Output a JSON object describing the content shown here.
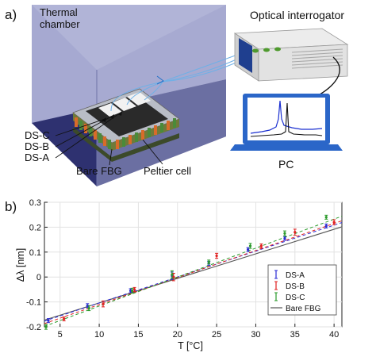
{
  "panel_a": {
    "letter": "a)",
    "thermal_chamber": [
      "Thermal",
      "chamber"
    ],
    "optical_interrogator": "Optical interrogator",
    "pc": "PC",
    "sensor_labels": [
      "DS-C",
      "DS-B",
      "DS-A"
    ],
    "bare_fbg": "Bare FBG",
    "peltier_cell": "Peltier cell",
    "colors": {
      "chamber_wall": "#8a8fc0",
      "chamber_back": "#a8acd3",
      "chamber_floor": "#2e3170",
      "interrogator_body": "#dedede",
      "interrogator_panel": "#1f3f8f",
      "interrogator_leds": "#4f9a2e",
      "spectrum_blue": "#1a2fd0",
      "spectrum_black": "#111111"
    }
  },
  "panel_b": {
    "letter": "b)",
    "chart_data": {
      "type": "scatter",
      "xlabel": "T [°C]",
      "ylabel": "Δλ [nm]",
      "xlim": [
        3,
        41
      ],
      "ylim": [
        -0.2,
        0.3
      ],
      "xticks": [
        5,
        10,
        15,
        20,
        25,
        30,
        35,
        40
      ],
      "yticks": [
        -0.2,
        -0.1,
        0,
        0.1,
        0.2,
        0.3
      ],
      "ytick_labels": [
        "-0.2",
        "-0.1",
        "0",
        "0.1",
        "0.2",
        "0.3"
      ],
      "grid": true,
      "legend_position": "lower-right",
      "series": [
        {
          "name": "DS-A",
          "color": "#2b2bd6",
          "x": [
            3.5,
            8.5,
            14,
            19.3,
            24,
            29,
            33.7,
            39
          ],
          "y": [
            -0.175,
            -0.115,
            -0.055,
            0.005,
            0.055,
            0.11,
            0.155,
            0.205
          ],
          "err": [
            0.008,
            0.008,
            0.008,
            0.015,
            0.008,
            0.008,
            0.008,
            0.008
          ],
          "fit": [
            -0.177,
            0.2186
          ]
        },
        {
          "name": "DS-B",
          "color": "#e02020",
          "x": [
            5.5,
            10.5,
            14.5,
            19.5,
            25,
            30.7,
            35,
            40
          ],
          "y": [
            -0.168,
            -0.108,
            -0.05,
            0.0,
            0.085,
            0.125,
            0.18,
            0.22
          ],
          "err": [
            0.008,
            0.012,
            0.008,
            0.015,
            0.01,
            0.008,
            0.012,
            0.01
          ],
          "fit": [
            -0.187,
            0.2258
          ]
        },
        {
          "name": "DS-C",
          "color": "#2a9a2a",
          "x": [
            3.2,
            8.7,
            14.2,
            19.3,
            24,
            29.3,
            33.7,
            39
          ],
          "y": [
            -0.2,
            -0.125,
            -0.055,
            0.01,
            0.06,
            0.125,
            0.175,
            0.24
          ],
          "err": [
            0.01,
            0.01,
            0.01,
            0.015,
            0.008,
            0.01,
            0.01,
            0.008
          ],
          "fit": [
            -0.198,
            0.244
          ]
        }
      ],
      "reference_line": {
        "name": "Bare FBG",
        "color": "#555555",
        "fit": [
          -0.173,
          0.2014
        ]
      }
    }
  }
}
